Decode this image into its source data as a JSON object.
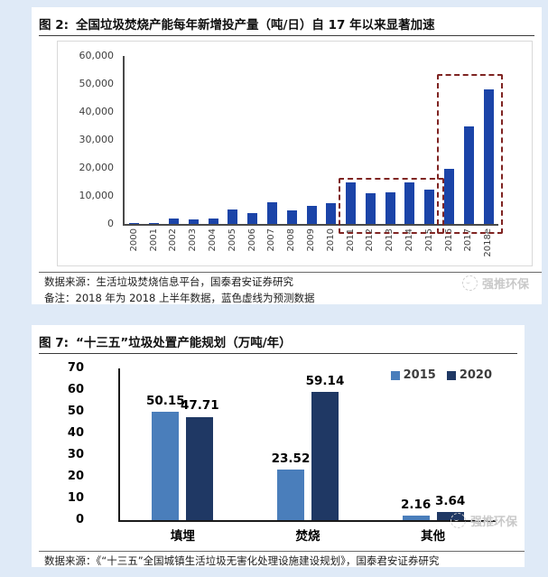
{
  "watermark": {
    "text": "强推环保"
  },
  "figures": [
    {
      "label": "图 2:",
      "title": "全国垃圾焚烧产能每年新增投产量（吨/日）自 17 年以来显著加速",
      "source": "数据来源：生活垃圾焚烧信息平台，国泰君安证券研究",
      "note": "备注：2018 年为 2018 上半年数据，蓝色虚线为预测数据"
    },
    {
      "label": "图 7:",
      "title": "“十三五”垃圾处置产能规划（万吨/年）",
      "source": "数据来源：《“十三五”全国城镇生活垃圾无害化处理设施建设规划》，国泰君安证券研究"
    }
  ],
  "chart_data": [
    {
      "type": "bar",
      "title": "图 2: 全国垃圾焚烧产能每年新增投产量（吨/日）自 17 年以来显著加速",
      "categories": [
        "2000",
        "2001",
        "2002",
        "2003",
        "2004",
        "2005",
        "2006",
        "2007",
        "2008",
        "2009",
        "2010",
        "2011",
        "2012",
        "2013",
        "2014",
        "2015",
        "2016",
        "2017",
        "2018e"
      ],
      "values": [
        400,
        400,
        1800,
        1500,
        1900,
        5200,
        4000,
        7900,
        5000,
        6500,
        7500,
        14800,
        10900,
        11200,
        14900,
        12300,
        19600,
        34800,
        48000
      ],
      "ylim": [
        0,
        60000
      ],
      "yticks": [
        "60,000",
        "50,000",
        "40,000",
        "30,000",
        "20,000",
        "10,000",
        "0"
      ],
      "xlabel": "",
      "ylabel": "",
      "grid": false,
      "bar_color": "#1b44a8",
      "annotations": [
        {
          "name": "dashed-box-2011-2015",
          "start_index": 11,
          "end_index": 15,
          "y_value": 16500,
          "color": "#7f2422"
        },
        {
          "name": "dashed-box-2016-2018e",
          "start_index": 16,
          "end_index": 18,
          "y_value": 53500,
          "color": "#7f2422"
        }
      ]
    },
    {
      "type": "bar",
      "title": "图 7: “十三五”垃圾处置产能规划（万吨/年）",
      "categories": [
        "填埋",
        "焚烧",
        "其他"
      ],
      "series": [
        {
          "name": "2015",
          "color": "#4a7ebb",
          "values": [
            50.15,
            23.52,
            2.16
          ]
        },
        {
          "name": "2020",
          "color": "#1f3864",
          "values": [
            47.71,
            59.14,
            3.64
          ]
        }
      ],
      "ylim": [
        0,
        70
      ],
      "yticks": [
        "70",
        "60",
        "50",
        "40",
        "30",
        "20",
        "10",
        "0"
      ],
      "xlabel": "",
      "ylabel": "",
      "grid": false,
      "data_labels": true,
      "legend_position": "top-right"
    }
  ]
}
